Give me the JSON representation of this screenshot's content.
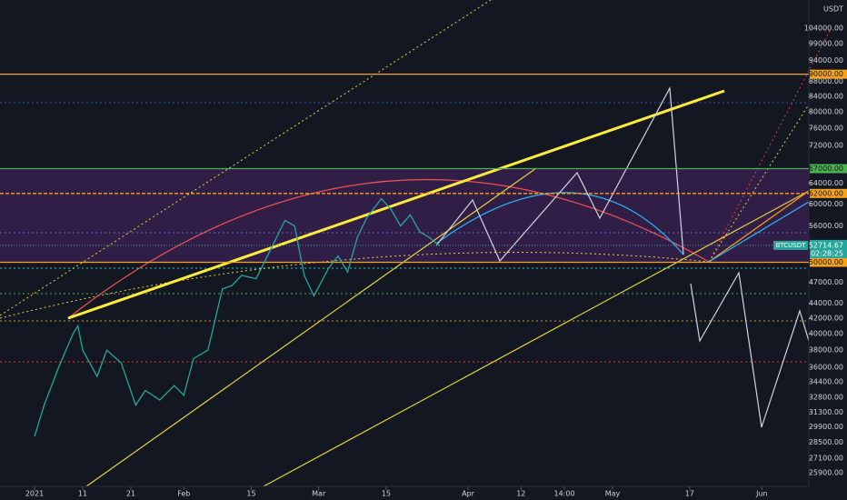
{
  "chart_data": {
    "type": "line",
    "log_y": true,
    "unit": "USDT",
    "series": [
      {
        "name": "BTCUSDT",
        "color": "#26a69a",
        "x": [
          0,
          2,
          5,
          8,
          9,
          10,
          13,
          15,
          18,
          21,
          23,
          26,
          29,
          31,
          33,
          36,
          39,
          41,
          43,
          46,
          49,
          52,
          54,
          56,
          58,
          61,
          63,
          65,
          67,
          69,
          72,
          74,
          76,
          78,
          80,
          82,
          84
        ],
        "values": [
          29000,
          32000,
          36000,
          40000,
          41000,
          38000,
          35000,
          38000,
          36500,
          32000,
          33500,
          32500,
          34000,
          33000,
          37000,
          38000,
          46000,
          46500,
          48000,
          47500,
          52000,
          57000,
          56000,
          48000,
          45000,
          49000,
          51000,
          48500,
          54000,
          57500,
          61000,
          59000,
          56000,
          58000,
          55000,
          54000,
          52700
        ]
      }
    ],
    "last_price": 52714.67,
    "countdown": "02:28:25",
    "levels": [
      {
        "value": 90000,
        "label": "90000.00",
        "color": "#f7a21b"
      },
      {
        "value": 67000,
        "label": "67000.00",
        "color": "#4caf50"
      },
      {
        "value": 62000,
        "label": "62000.00",
        "color": "#f7a21b"
      },
      {
        "value": 50000,
        "label": "50000.00",
        "color": "#f7a21b"
      }
    ],
    "xlim": [
      -7.17,
      160.75
    ],
    "xticks": [
      {
        "value": 0,
        "label": "2021"
      },
      {
        "value": 10,
        "label": "11"
      },
      {
        "value": 20,
        "label": "21"
      },
      {
        "value": 31,
        "label": "Feb"
      },
      {
        "value": 45,
        "label": "15"
      },
      {
        "value": 59,
        "label": "Mar"
      },
      {
        "value": 73,
        "label": "15"
      },
      {
        "value": 90,
        "label": "Apr"
      },
      {
        "value": 101,
        "label": "12"
      },
      {
        "value": 110,
        "label": "14:00"
      },
      {
        "value": 120,
        "label": "May"
      },
      {
        "value": 136,
        "label": "17"
      },
      {
        "value": 151,
        "label": "Jun"
      }
    ],
    "ylim": [
      24820,
      113500
    ],
    "yticks": [
      {
        "value": 104000,
        "label": "104000.00"
      },
      {
        "value": 99000,
        "label": "99000.00"
      },
      {
        "value": 94000,
        "label": "94000.00"
      },
      {
        "value": 88000,
        "label": "88000.00"
      },
      {
        "value": 84000,
        "label": "84000.00"
      },
      {
        "value": 80000,
        "label": "80000.00"
      },
      {
        "value": 76000,
        "label": "76000.00"
      },
      {
        "value": 72000,
        "label": "72000.00"
      },
      {
        "value": 64000,
        "label": "64000.00"
      },
      {
        "value": 60000,
        "label": "60000.00"
      },
      {
        "value": 56000,
        "label": "56000.00"
      },
      {
        "value": 47000,
        "label": "47000.00"
      },
      {
        "value": 44000,
        "label": "44000.00"
      },
      {
        "value": 42000,
        "label": "42000.00"
      },
      {
        "value": 40000,
        "label": "40000.00"
      },
      {
        "value": 38000,
        "label": "38000.00"
      },
      {
        "value": 36000,
        "label": "36000.00"
      },
      {
        "value": 34400,
        "label": "34400.00"
      },
      {
        "value": 32800,
        "label": "32800.00"
      },
      {
        "value": 31300,
        "label": "31300.00"
      },
      {
        "value": 29900,
        "label": "29900.00"
      },
      {
        "value": 28500,
        "label": "28500.00"
      },
      {
        "value": 27100,
        "label": "27100.00"
      },
      {
        "value": 25900,
        "label": "25900.00"
      }
    ]
  }
}
